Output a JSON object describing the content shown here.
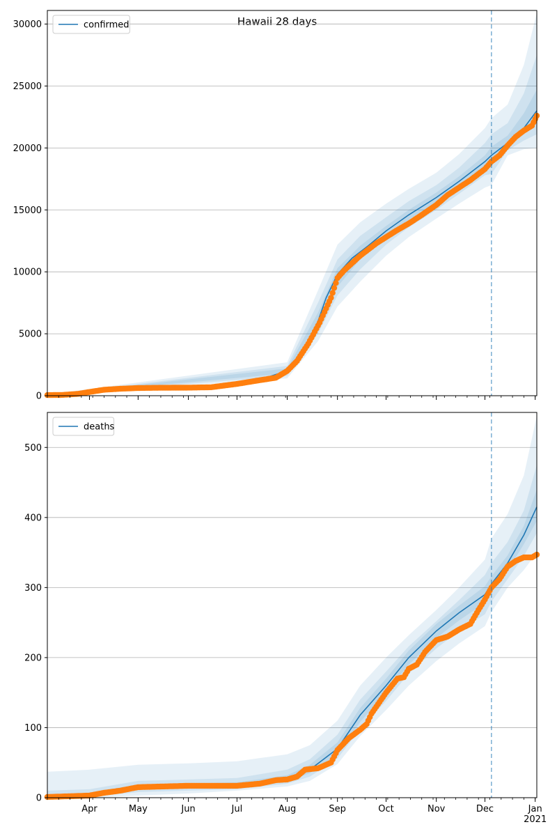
{
  "figure": {
    "title": "Hawaii 28 days"
  },
  "chart_data": [
    {
      "type": "line",
      "legend": [
        "confirmed"
      ],
      "legend_placement": "upper-left",
      "grid": "horizontal",
      "ylim": [
        0,
        31100
      ],
      "yticks": [
        0,
        5000,
        10000,
        15000,
        20000,
        25000,
        30000
      ],
      "ytick_labels": [
        "0",
        "5000",
        "10000",
        "15000",
        "20000",
        "25000",
        "30000"
      ],
      "forecast_start": "2020-12-05",
      "series": [
        {
          "name": "confirmed",
          "role": "model median",
          "color": "#1f77b4",
          "x": [
            "2020-03-06",
            "2020-03-20",
            "2020-04-01",
            "2020-04-15",
            "2020-05-01",
            "2020-06-01",
            "2020-07-01",
            "2020-07-15",
            "2020-08-01",
            "2020-08-10",
            "2020-08-20",
            "2020-08-25",
            "2020-09-01",
            "2020-09-10",
            "2020-09-20",
            "2020-10-01",
            "2020-10-15",
            "2020-11-01",
            "2020-11-15",
            "2020-12-01",
            "2020-12-05",
            "2020-12-15",
            "2020-12-25",
            "2021-01-02"
          ],
          "values": [
            50,
            120,
            280,
            480,
            620,
            650,
            950,
            1300,
            2000,
            3400,
            6000,
            7900,
            9800,
            11100,
            12100,
            13300,
            14600,
            16000,
            17300,
            18900,
            19400,
            20400,
            21600,
            23000
          ]
        },
        {
          "name": "confirmed observed",
          "role": "observed",
          "color": "#ff7f0e",
          "x": [
            "2020-03-06",
            "2020-03-15",
            "2020-03-25",
            "2020-04-01",
            "2020-04-10",
            "2020-04-20",
            "2020-05-01",
            "2020-05-15",
            "2020-06-01",
            "2020-06-15",
            "2020-07-01",
            "2020-07-15",
            "2020-07-25",
            "2020-08-01",
            "2020-08-07",
            "2020-08-14",
            "2020-08-21",
            "2020-08-28",
            "2020-09-01",
            "2020-09-05",
            "2020-09-10",
            "2020-09-15",
            "2020-09-20",
            "2020-09-25",
            "2020-10-01",
            "2020-10-07",
            "2020-10-15",
            "2020-10-22",
            "2020-11-01",
            "2020-11-08",
            "2020-11-15",
            "2020-11-22",
            "2020-12-01",
            "2020-12-05",
            "2020-12-10",
            "2020-12-15",
            "2020-12-20",
            "2020-12-25",
            "2020-12-30",
            "2021-01-02"
          ],
          "values": [
            50,
            60,
            150,
            300,
            480,
            560,
            620,
            640,
            650,
            680,
            950,
            1250,
            1450,
            2000,
            2800,
            4200,
            5900,
            7900,
            9500,
            10100,
            10700,
            11300,
            11800,
            12300,
            12800,
            13300,
            13900,
            14500,
            15400,
            16200,
            16800,
            17400,
            18300,
            18900,
            19400,
            20200,
            20900,
            21400,
            21800,
            22600
          ]
        }
      ],
      "bands": [
        {
          "opacity_level": "outer",
          "x": [
            "2020-03-06",
            "2020-08-01",
            "2020-08-20",
            "2020-09-01",
            "2020-09-15",
            "2020-10-01",
            "2020-10-15",
            "2020-11-01",
            "2020-11-15",
            "2020-12-01",
            "2020-12-05",
            "2020-12-15",
            "2020-12-25",
            "2021-01-02"
          ],
          "lower": [
            20,
            1400,
            4400,
            7200,
            9200,
            11300,
            12800,
            14300,
            15500,
            16800,
            17000,
            19400,
            19900,
            20000
          ],
          "upper": [
            90,
            2700,
            8500,
            12200,
            14000,
            15500,
            16700,
            18000,
            19500,
            21600,
            22400,
            23500,
            26700,
            30900
          ]
        },
        {
          "opacity_level": "middle",
          "x": [
            "2020-03-06",
            "2020-08-01",
            "2020-08-20",
            "2020-09-01",
            "2020-09-15",
            "2020-10-01",
            "2020-10-15",
            "2020-11-01",
            "2020-11-15",
            "2020-12-01",
            "2020-12-05",
            "2020-12-15",
            "2020-12-25",
            "2021-01-02"
          ],
          "lower": [
            30,
            1600,
            5000,
            8100,
            10200,
            12200,
            13600,
            15000,
            16300,
            17800,
            17900,
            19800,
            20600,
            21100
          ],
          "upper": [
            75,
            2400,
            7500,
            11000,
            12900,
            14400,
            15700,
            17000,
            18400,
            20400,
            21100,
            22000,
            24400,
            27500
          ]
        },
        {
          "opacity_level": "inner",
          "x": [
            "2020-03-06",
            "2020-08-01",
            "2020-08-20",
            "2020-09-01",
            "2020-09-15",
            "2020-10-01",
            "2020-10-15",
            "2020-11-01",
            "2020-11-15",
            "2020-12-01",
            "2020-12-05",
            "2020-12-15",
            "2020-12-25",
            "2021-01-02"
          ],
          "lower": [
            38,
            1800,
            5500,
            8800,
            11000,
            12900,
            14200,
            15600,
            16900,
            18400,
            18700,
            20100,
            21100,
            22000
          ],
          "upper": [
            62,
            2200,
            6700,
            10300,
            12100,
            13700,
            15000,
            16400,
            17700,
            19400,
            20100,
            21000,
            22800,
            24700
          ]
        }
      ]
    },
    {
      "type": "line",
      "legend": [
        "deaths"
      ],
      "legend_placement": "upper-left",
      "grid": "horizontal",
      "ylim": [
        0,
        550
      ],
      "yticks": [
        0,
        100,
        200,
        300,
        400,
        500
      ],
      "ytick_labels": [
        "0",
        "100",
        "200",
        "300",
        "400",
        "500"
      ],
      "forecast_start": "2020-12-05",
      "xtick_labels": [
        "Apr",
        "May",
        "Jun",
        "Jul",
        "Aug",
        "Sep",
        "Oct",
        "Nov",
        "Dec",
        "Jan\n2021"
      ],
      "xtick_dates": [
        "2020-04-01",
        "2020-05-01",
        "2020-06-01",
        "2020-07-01",
        "2020-08-01",
        "2020-09-01",
        "2020-10-01",
        "2020-11-01",
        "2020-12-01",
        "2021-01-01"
      ],
      "series": [
        {
          "name": "deaths",
          "role": "model median",
          "color": "#1f77b4",
          "x": [
            "2020-03-06",
            "2020-04-01",
            "2020-04-15",
            "2020-05-01",
            "2020-06-01",
            "2020-07-01",
            "2020-08-01",
            "2020-08-15",
            "2020-09-01",
            "2020-09-15",
            "2020-10-01",
            "2020-10-15",
            "2020-11-01",
            "2020-11-15",
            "2020-12-01",
            "2020-12-05",
            "2020-12-15",
            "2020-12-25",
            "2021-01-02"
          ],
          "values": [
            2,
            4,
            10,
            16,
            17,
            18,
            27,
            40,
            70,
            118,
            160,
            200,
            238,
            264,
            290,
            305,
            335,
            375,
            415
          ]
        },
        {
          "name": "deaths observed",
          "role": "observed",
          "color": "#ff7f0e",
          "x": [
            "2020-03-06",
            "2020-04-01",
            "2020-04-10",
            "2020-04-20",
            "2020-05-01",
            "2020-06-01",
            "2020-07-01",
            "2020-07-15",
            "2020-07-25",
            "2020-08-01",
            "2020-08-07",
            "2020-08-12",
            "2020-08-20",
            "2020-08-28",
            "2020-09-01",
            "2020-09-08",
            "2020-09-15",
            "2020-09-19",
            "2020-09-22",
            "2020-10-01",
            "2020-10-08",
            "2020-10-12",
            "2020-10-15",
            "2020-10-20",
            "2020-10-25",
            "2020-11-01",
            "2020-11-08",
            "2020-11-15",
            "2020-11-22",
            "2020-11-27",
            "2020-12-01",
            "2020-12-05",
            "2020-12-10",
            "2020-12-15",
            "2020-12-20",
            "2020-12-25",
            "2020-12-30",
            "2021-01-02"
          ],
          "values": [
            1,
            3,
            7,
            10,
            15,
            17,
            17,
            20,
            25,
            26,
            30,
            40,
            42,
            50,
            68,
            85,
            97,
            105,
            120,
            150,
            170,
            172,
            184,
            190,
            208,
            225,
            230,
            240,
            248,
            268,
            283,
            300,
            312,
            330,
            338,
            343,
            343,
            347
          ]
        }
      ],
      "bands": [
        {
          "opacity_level": "outer",
          "x": [
            "2020-03-06",
            "2020-04-01",
            "2020-05-01",
            "2020-06-01",
            "2020-07-01",
            "2020-08-01",
            "2020-08-15",
            "2020-09-01",
            "2020-09-15",
            "2020-10-01",
            "2020-10-15",
            "2020-11-01",
            "2020-11-15",
            "2020-12-01",
            "2020-12-05",
            "2020-12-15",
            "2020-12-25",
            "2021-01-02"
          ],
          "lower": [
            0,
            0,
            3,
            6,
            10,
            16,
            24,
            48,
            88,
            125,
            160,
            195,
            220,
            245,
            265,
            300,
            325,
            350
          ],
          "upper": [
            37,
            40,
            47,
            49,
            52,
            62,
            75,
            110,
            160,
            200,
            232,
            268,
            300,
            340,
            370,
            405,
            460,
            545
          ]
        },
        {
          "opacity_level": "middle",
          "x": [
            "2020-03-06",
            "2020-04-01",
            "2020-05-01",
            "2020-06-01",
            "2020-07-01",
            "2020-08-01",
            "2020-08-15",
            "2020-09-01",
            "2020-09-15",
            "2020-10-01",
            "2020-10-15",
            "2020-11-01",
            "2020-11-15",
            "2020-12-01",
            "2020-12-05",
            "2020-12-15",
            "2020-12-25",
            "2021-01-02"
          ],
          "lower": [
            0,
            1,
            8,
            10,
            12,
            20,
            30,
            56,
            98,
            138,
            177,
            213,
            238,
            262,
            280,
            312,
            345,
            378
          ],
          "upper": [
            10,
            12,
            24,
            26,
            28,
            40,
            55,
            90,
            140,
            180,
            216,
            252,
            282,
            318,
            335,
            365,
            410,
            475
          ]
        },
        {
          "opacity_level": "inner",
          "x": [
            "2020-03-06",
            "2020-04-01",
            "2020-05-01",
            "2020-06-01",
            "2020-07-01",
            "2020-08-01",
            "2020-08-15",
            "2020-09-01",
            "2020-09-15",
            "2020-10-01",
            "2020-10-15",
            "2020-11-01",
            "2020-11-15",
            "2020-12-01",
            "2020-12-05",
            "2020-12-15",
            "2020-12-25",
            "2021-01-02"
          ],
          "lower": [
            1,
            2,
            12,
            13,
            15,
            23,
            35,
            62,
            108,
            150,
            190,
            228,
            253,
            278,
            294,
            324,
            362,
            395
          ],
          "upper": [
            4,
            7,
            19,
            20,
            22,
            32,
            47,
            79,
            128,
            170,
            210,
            248,
            274,
            302,
            316,
            346,
            388,
            440
          ]
        }
      ]
    }
  ]
}
